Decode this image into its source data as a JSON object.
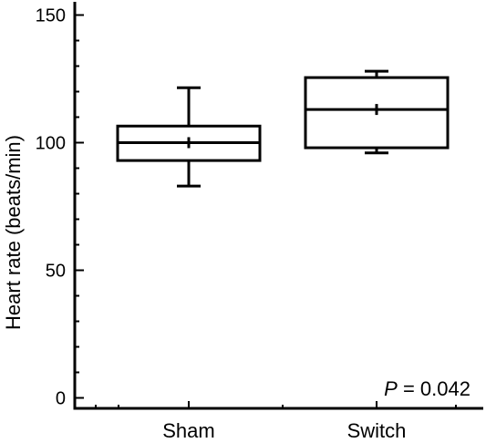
{
  "chart_data": {
    "type": "box",
    "title": "",
    "xlabel": "",
    "ylabel": "Heart rate (beats/min)",
    "ylim": [
      0,
      150
    ],
    "yticks": [
      {
        "value": 0,
        "label": "0"
      },
      {
        "value": 50,
        "label": "50"
      },
      {
        "value": 100,
        "label": "100"
      },
      {
        "value": 150,
        "label": "150"
      }
    ],
    "categories": [
      "Sham",
      "Switch"
    ],
    "boxes": [
      {
        "category": "Sham",
        "whisker_low": 83,
        "q1": 93,
        "median": 100,
        "mean": 100,
        "q3": 106.5,
        "whisker_high": 121.5
      },
      {
        "category": "Switch",
        "whisker_low": 96,
        "q1": 98,
        "median": 113,
        "mean": 113,
        "q3": 125.5,
        "whisker_high": 128
      }
    ],
    "annotation": {
      "p_symbol": "P",
      "p_text": " = 0.042"
    },
    "grid": false,
    "legend": "none"
  }
}
